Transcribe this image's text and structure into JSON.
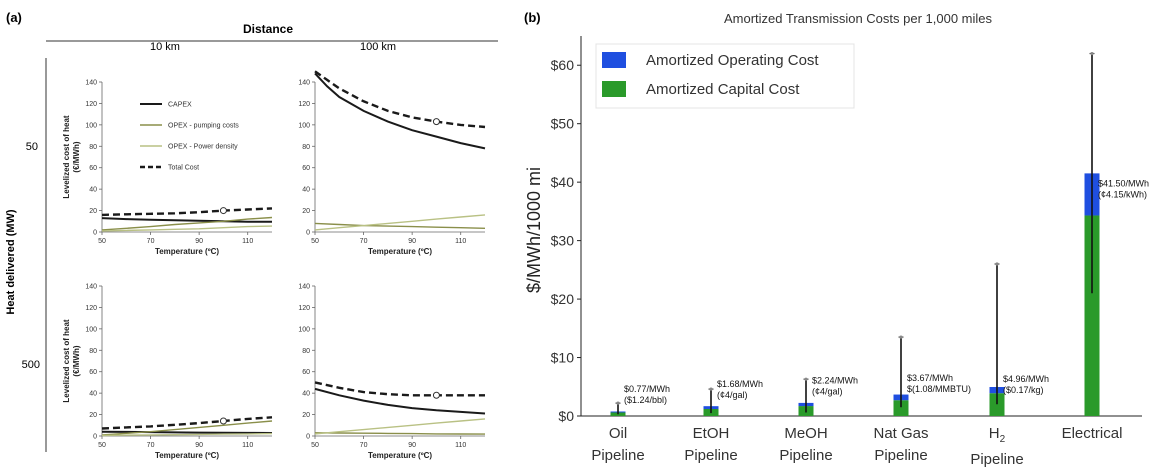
{
  "panel_a": {
    "label": "(a)",
    "column_header": "Distance",
    "columns": [
      "10 km",
      "100 km"
    ],
    "row_header": "Heat delivered (MW)",
    "rows": [
      "50",
      "500"
    ]
  },
  "panel_b": {
    "label": "(b)"
  },
  "colors": {
    "capex": "#1a1a1a",
    "opex_pumping": "#8a8f4a",
    "opex_power": "#b9c184",
    "total": "#1a1a1a",
    "operating": "#1f4fe0",
    "capital": "#2a9a2a"
  },
  "chart_data": [
    {
      "type": "line",
      "id": "a-50MW-10km",
      "xlabel": "Temperature (ºC)",
      "ylabel": "Levelized cost of heat (€/MWh)",
      "xlim": [
        50,
        120
      ],
      "ylim": [
        0,
        140
      ],
      "xticks": [
        50,
        70,
        90,
        110
      ],
      "yticks": [
        0,
        20,
        40,
        60,
        80,
        100,
        120,
        140
      ],
      "legend": [
        "CAPEX",
        "OPEX - pumping costs",
        "OPEX - Power density",
        "Total Cost"
      ],
      "series": [
        {
          "name": "CAPEX",
          "x": [
            50,
            60,
            70,
            80,
            90,
            100,
            110,
            120
          ],
          "y": [
            13,
            12,
            11.5,
            11,
            10.5,
            10,
            9.5,
            9.5
          ]
        },
        {
          "name": "OPEX - pumping costs",
          "x": [
            50,
            60,
            70,
            80,
            90,
            100,
            110,
            120
          ],
          "y": [
            2,
            3.5,
            5,
            7,
            8.5,
            10,
            12,
            13.5
          ]
        },
        {
          "name": "OPEX - Power density",
          "x": [
            50,
            60,
            70,
            80,
            90,
            100,
            110,
            120
          ],
          "y": [
            1,
            1.5,
            2,
            2.5,
            3,
            4,
            5,
            5.5
          ]
        },
        {
          "name": "Total Cost",
          "x": [
            50,
            60,
            70,
            80,
            90,
            100,
            110,
            120
          ],
          "y": [
            16,
            16.5,
            17,
            17.5,
            18.5,
            20,
            21,
            22
          ]
        }
      ],
      "marker": {
        "x": 100,
        "y": 20
      }
    },
    {
      "type": "line",
      "id": "a-50MW-100km",
      "xlabel": "Temperature (ºC)",
      "xlim": [
        50,
        120
      ],
      "ylim": [
        0,
        140
      ],
      "xticks": [
        50,
        70,
        90,
        110
      ],
      "yticks": [
        0,
        20,
        40,
        60,
        80,
        100,
        120,
        140
      ],
      "series": [
        {
          "name": "CAPEX",
          "x": [
            50,
            55,
            60,
            70,
            80,
            90,
            100,
            110,
            120
          ],
          "y": [
            148,
            136,
            126,
            113,
            103,
            95,
            89,
            83,
            78
          ]
        },
        {
          "name": "OPEX - pumping costs",
          "x": [
            50,
            60,
            70,
            80,
            90,
            100,
            110,
            120
          ],
          "y": [
            8,
            7,
            6,
            5.5,
            5,
            4.5,
            4,
            3.5
          ]
        },
        {
          "name": "OPEX - Power density",
          "x": [
            50,
            60,
            70,
            80,
            90,
            100,
            110,
            120
          ],
          "y": [
            2,
            4,
            6,
            8,
            10,
            12,
            14,
            16
          ]
        },
        {
          "name": "Total Cost",
          "x": [
            50,
            55,
            60,
            70,
            80,
            90,
            100,
            110,
            120
          ],
          "y": [
            150,
            142,
            134,
            122,
            113,
            107,
            103,
            100,
            98
          ]
        }
      ],
      "marker": {
        "x": 100,
        "y": 103
      }
    },
    {
      "type": "line",
      "id": "a-500MW-10km",
      "xlabel": "Temperature (ºC)",
      "ylabel": "Levelized cost of heat (€/MWh)",
      "xlim": [
        50,
        120
      ],
      "ylim": [
        0,
        140
      ],
      "xticks": [
        50,
        70,
        90,
        110
      ],
      "yticks": [
        0,
        20,
        40,
        60,
        80,
        100,
        120,
        140
      ],
      "series": [
        {
          "name": "CAPEX",
          "x": [
            50,
            60,
            70,
            80,
            90,
            100,
            110,
            120
          ],
          "y": [
            4,
            3.8,
            3.6,
            3.4,
            3.2,
            3,
            2.9,
            2.8
          ]
        },
        {
          "name": "OPEX - pumping costs",
          "x": [
            50,
            60,
            70,
            80,
            90,
            100,
            110,
            120
          ],
          "y": [
            1,
            2.5,
            4,
            6,
            8,
            10,
            12,
            14
          ]
        },
        {
          "name": "OPEX - Power density",
          "x": [
            50,
            60,
            70,
            80,
            90,
            100,
            110,
            120
          ],
          "y": [
            0.5,
            0.8,
            1,
            1.2,
            1.5,
            1.8,
            2,
            2.2
          ]
        },
        {
          "name": "Total Cost",
          "x": [
            50,
            60,
            70,
            80,
            90,
            100,
            110,
            120
          ],
          "y": [
            7,
            8,
            9,
            10.5,
            12,
            14,
            16,
            17.5
          ]
        }
      ],
      "marker": {
        "x": 100,
        "y": 14
      }
    },
    {
      "type": "line",
      "id": "a-500MW-100km",
      "xlabel": "Temperature (ºC)",
      "xlim": [
        50,
        120
      ],
      "ylim": [
        0,
        140
      ],
      "xticks": [
        50,
        70,
        90,
        110
      ],
      "yticks": [
        0,
        20,
        40,
        60,
        80,
        100,
        120,
        140
      ],
      "series": [
        {
          "name": "CAPEX",
          "x": [
            50,
            60,
            70,
            80,
            90,
            100,
            110,
            120
          ],
          "y": [
            44,
            38,
            33,
            29,
            26,
            24,
            22.5,
            21
          ]
        },
        {
          "name": "OPEX - pumping costs",
          "x": [
            50,
            60,
            70,
            80,
            90,
            100,
            110,
            120
          ],
          "y": [
            3,
            2.8,
            2.6,
            2.4,
            2.2,
            2,
            1.9,
            1.8
          ]
        },
        {
          "name": "OPEX - Power density",
          "x": [
            50,
            60,
            70,
            80,
            90,
            100,
            110,
            120
          ],
          "y": [
            2,
            4,
            6,
            8,
            10,
            12,
            14,
            16
          ]
        },
        {
          "name": "Total Cost",
          "x": [
            50,
            60,
            70,
            80,
            90,
            100,
            110,
            120
          ],
          "y": [
            50,
            45,
            41,
            39,
            38,
            38,
            38,
            38
          ]
        }
      ],
      "marker": {
        "x": 100,
        "y": 38
      }
    },
    {
      "type": "bar",
      "id": "b",
      "title": "Amortized Transmission Costs per 1,000 miles",
      "ylabel": "$/MWh/1000 mi",
      "ylim": [
        0,
        65
      ],
      "yticks": [
        "$0",
        "$10",
        "$20",
        "$30",
        "$40",
        "$50",
        "$60"
      ],
      "stacked": true,
      "categories": [
        {
          "line1": "Oil",
          "line2": "Pipeline"
        },
        {
          "line1": "EtOH",
          "line2": "Pipeline"
        },
        {
          "line1": "MeOH",
          "line2": "Pipeline"
        },
        {
          "line1": "Nat Gas",
          "line2": "Pipeline"
        },
        {
          "line1": "H",
          "sub": "2",
          "line2": "Pipeline"
        },
        {
          "line1": "Electrical",
          "line2": ""
        }
      ],
      "series": [
        {
          "name": "Amortized Capital Cost",
          "values": [
            0.6,
            1.2,
            1.7,
            2.7,
            3.9,
            34.3
          ]
        },
        {
          "name": "Amortized Operating Cost",
          "values": [
            0.17,
            0.48,
            0.54,
            0.97,
            1.06,
            7.2
          ]
        }
      ],
      "totals": [
        0.77,
        1.68,
        2.24,
        3.67,
        4.96,
        41.5
      ],
      "error_bars": [
        [
          0.3,
          2.2
        ],
        [
          0.5,
          4.6
        ],
        [
          0.6,
          6.3
        ],
        [
          1.5,
          13.5
        ],
        [
          2.0,
          26.0
        ],
        [
          21.0,
          62.0
        ]
      ],
      "data_labels": [
        {
          "line1": "$0.77/MWh",
          "line2": "($1.24/bbl)"
        },
        {
          "line1": "$1.68/MWh",
          "line2": "(¢4/gal)"
        },
        {
          "line1": "$2.24/MWh",
          "line2": "(¢4/gal)"
        },
        {
          "line1": "$3.67/MWh",
          "line2": "$(1.08/MMBTU)"
        },
        {
          "line1": "$4.96/MWh",
          "line2": "($0.17/kg)"
        },
        {
          "line1": "$41.50/MWh",
          "line2": "(¢4.15/kWh)"
        }
      ],
      "legend_position": "top-left"
    }
  ]
}
